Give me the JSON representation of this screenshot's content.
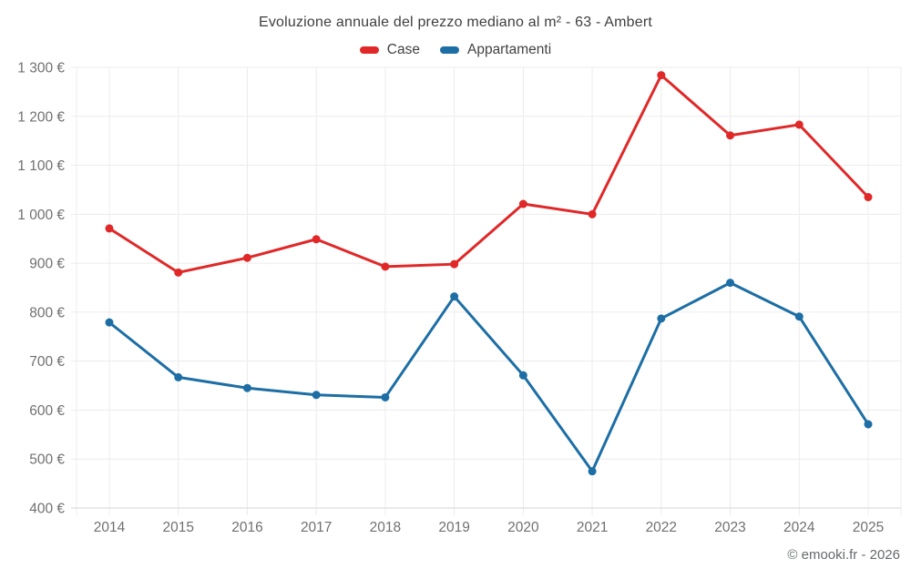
{
  "chart": {
    "title": "Evoluzione annuale del prezzo mediano al m² - 63 - Ambert",
    "footer": "© emooki.fr - 2026"
  },
  "chart_data": {
    "type": "line",
    "title": "Evoluzione annuale del prezzo mediano al m² - 63 - Ambert",
    "x": [
      2014,
      2015,
      2016,
      2017,
      2018,
      2019,
      2020,
      2021,
      2022,
      2023,
      2024,
      2025
    ],
    "series": [
      {
        "name": "Case",
        "color": "#e02828",
        "values": [
          971,
          881,
          911,
          949,
          893,
          898,
          1021,
          1000,
          1284,
          1161,
          1183,
          1035
        ]
      },
      {
        "name": "Appartamenti",
        "color": "#1c6ea4",
        "values": [
          779,
          667,
          645,
          631,
          626,
          832,
          671,
          475,
          787,
          860,
          791,
          571
        ]
      }
    ],
    "ylim": [
      400,
      1300
    ],
    "ytick_step": 100,
    "ytick_suffix": "€",
    "ytick_labels": [
      "400 €",
      "500 €",
      "600 €",
      "700 €",
      "800 €",
      "900 €",
      "1 000 €",
      "1 100 €",
      "1 200 €",
      "1 300 €"
    ],
    "grid": true,
    "legend_position": "top",
    "axis_label_color": "#707070",
    "grid_color": "#ececec",
    "axis_line_color": "#d6d6d6"
  }
}
